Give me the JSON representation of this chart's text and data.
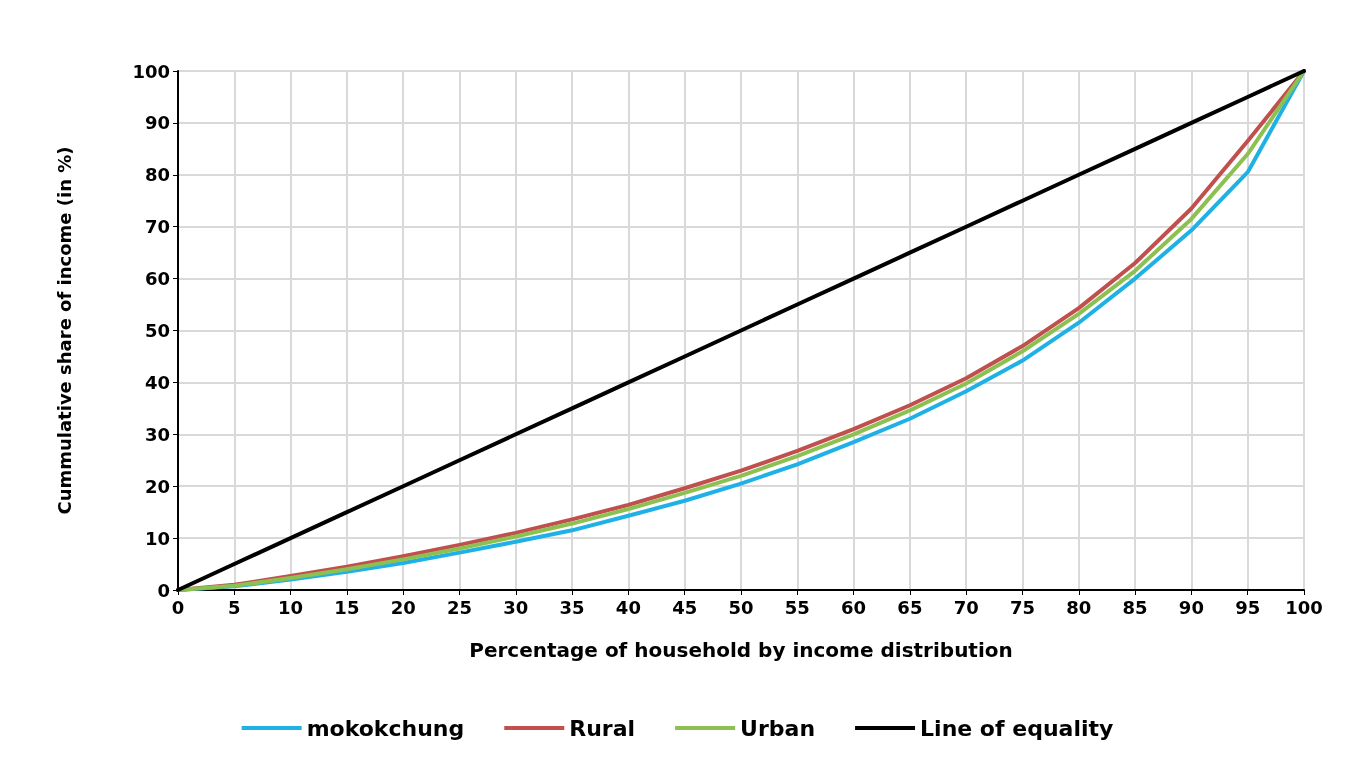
{
  "chart_data": {
    "type": "line",
    "xlabel": "Percentage of household by income distribution",
    "ylabel": "Cummulative share of income (in %)",
    "x": [
      0,
      5,
      10,
      15,
      20,
      25,
      30,
      35,
      40,
      45,
      50,
      55,
      60,
      65,
      70,
      75,
      80,
      85,
      90,
      95,
      100
    ],
    "series": [
      {
        "name": "mokokchung",
        "color": "#1fb1e6",
        "values": [
          0,
          0.7,
          2,
          3.5,
          5.2,
          7.2,
          9.3,
          11.5,
          14.3,
          17.2,
          20.5,
          24.2,
          28.5,
          33,
          38.3,
          44.2,
          51.5,
          60,
          69.3,
          80.5,
          100
        ]
      },
      {
        "name": "Rural",
        "color": "#c0504d",
        "values": [
          0,
          1,
          2.7,
          4.5,
          6.5,
          8.7,
          11,
          13.6,
          16.4,
          19.6,
          23,
          26.8,
          31,
          35.6,
          40.8,
          47,
          54.3,
          63,
          73.5,
          86.5,
          100
        ]
      },
      {
        "name": "Urban",
        "color": "#8cc152",
        "values": [
          0,
          0.8,
          2.3,
          4,
          5.9,
          8,
          10.3,
          12.8,
          15.6,
          18.7,
          22,
          25.8,
          30,
          34.6,
          39.8,
          46,
          53.2,
          61.5,
          71.5,
          84,
          100
        ]
      },
      {
        "name": "Line of equality",
        "color": "#000000",
        "values": [
          0,
          5,
          10,
          15,
          20,
          25,
          30,
          35,
          40,
          45,
          50,
          55,
          60,
          65,
          70,
          75,
          80,
          85,
          90,
          95,
          100
        ]
      }
    ],
    "xlim": [
      0,
      100
    ],
    "xticks": [
      0,
      5,
      10,
      15,
      20,
      25,
      30,
      35,
      40,
      45,
      50,
      55,
      60,
      65,
      70,
      75,
      80,
      85,
      90,
      95,
      100
    ],
    "ylim": [
      0,
      100
    ],
    "yticks": [
      0,
      10,
      20,
      30,
      40,
      50,
      60,
      70,
      80,
      90,
      100
    ],
    "grid": true,
    "legend": "bottom",
    "marker": "none",
    "line_style": "solid"
  }
}
